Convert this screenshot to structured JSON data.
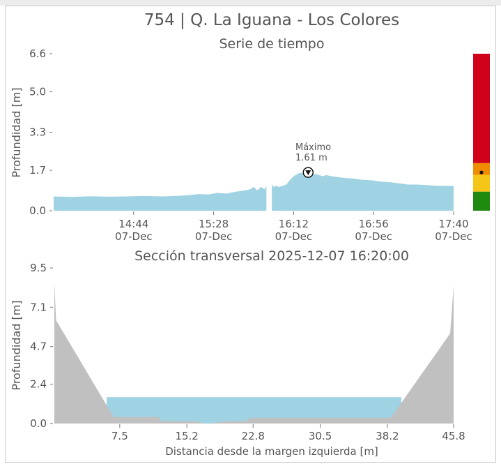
{
  "figure": {
    "title": "754 | Q. La Iguana - Los Colores",
    "top_bar_color": "#ececec",
    "border_color": "#c8c8c8"
  },
  "chart_data": [
    {
      "type": "area",
      "title": "Serie de tiempo",
      "xlabel": "",
      "ylabel": "Profundidad [m]",
      "y_ticks": [
        "0.0",
        "1.7",
        "3.3",
        "5.0",
        "6.6"
      ],
      "ylim": [
        0,
        6.6
      ],
      "x_tick_labels": [
        {
          "time": "14:44",
          "date": "07-Dec"
        },
        {
          "time": "15:28",
          "date": "07-Dec"
        },
        {
          "time": "16:12",
          "date": "07-Dec"
        },
        {
          "time": "16:56",
          "date": "07-Dec"
        },
        {
          "time": "17:40",
          "date": "07-Dec"
        }
      ],
      "x_ticks_min": [
        884,
        928,
        972,
        1016,
        1060
      ],
      "xlim_min": [
        840,
        1060
      ],
      "fill_color": "#9fd3e3",
      "gap_min": [
        957,
        960
      ],
      "series": [
        {
          "x_min": [
            840,
            850,
            860,
            870,
            880,
            890,
            900,
            910,
            915,
            920,
            925,
            930,
            935,
            940,
            945,
            948,
            950,
            952,
            954,
            956,
            957,
            960,
            961,
            962,
            964,
            966,
            968,
            970,
            972,
            974,
            976,
            978,
            980,
            982,
            984,
            986,
            988,
            990,
            993,
            996,
            1000,
            1005,
            1010,
            1015,
            1020,
            1025,
            1030,
            1035,
            1040,
            1045,
            1050,
            1055,
            1060
          ],
          "y": [
            0.6,
            0.58,
            0.61,
            0.59,
            0.6,
            0.62,
            0.6,
            0.63,
            0.66,
            0.7,
            0.68,
            0.75,
            0.72,
            0.8,
            0.85,
            0.9,
            1.0,
            0.85,
            1.0,
            0.9,
            1.05,
            1.1,
            1.0,
            1.05,
            1.0,
            1.05,
            1.1,
            1.3,
            1.45,
            1.55,
            1.6,
            1.55,
            1.45,
            1.5,
            1.55,
            1.5,
            1.45,
            1.5,
            1.45,
            1.42,
            1.38,
            1.35,
            1.3,
            1.28,
            1.22,
            1.2,
            1.15,
            1.1,
            1.1,
            1.08,
            1.05,
            1.05,
            1.04
          ]
        }
      ],
      "annotation": {
        "label": "Máximo",
        "value": "1.61 m",
        "x_min": 980,
        "y": 1.61
      },
      "alert_bar": {
        "levels": [
          {
            "color": "#d0021b",
            "from": 2.0,
            "to": 6.6
          },
          {
            "color": "#f08c00",
            "from": 1.5,
            "to": 2.0
          },
          {
            "color": "#f5c518",
            "from": 0.8,
            "to": 1.5
          },
          {
            "color": "#1f8a0f",
            "from": 0.0,
            "to": 0.8
          }
        ],
        "current": 1.61
      }
    },
    {
      "type": "area",
      "title": "Sección transversal 2025-12-07 16:20:00",
      "xlabel": "Distancia desde la margen izquierda [m]",
      "ylabel": "Profundidad [m]",
      "y_ticks": [
        "0.0",
        "2.4",
        "4.7",
        "7.1",
        "9.5"
      ],
      "ylim": [
        0,
        9.5
      ],
      "x_ticks": [
        "7.5",
        "15.2",
        "22.8",
        "30.5",
        "38.2",
        "45.8"
      ],
      "x_tick_values": [
        7.5,
        15.2,
        22.8,
        30.5,
        38.2,
        45.8
      ],
      "xlim": [
        0,
        45.8
      ],
      "terrain_color": "#c0c0c0",
      "water_color": "#9fd3e3",
      "water_level": 1.61,
      "bed_profile": {
        "x": [
          0,
          0,
          0.2,
          6.8,
          7.5,
          12.0,
          12.2,
          16.0,
          17.5,
          20.0,
          22.0,
          22.5,
          38.0,
          38.6,
          45.4,
          45.8,
          45.8
        ],
        "y": [
          0,
          8.6,
          6.3,
          0.4,
          0.4,
          0.4,
          0.15,
          0.15,
          0.0,
          0.15,
          0.15,
          0.35,
          0.35,
          0.35,
          5.5,
          8.4,
          0
        ]
      }
    }
  ]
}
